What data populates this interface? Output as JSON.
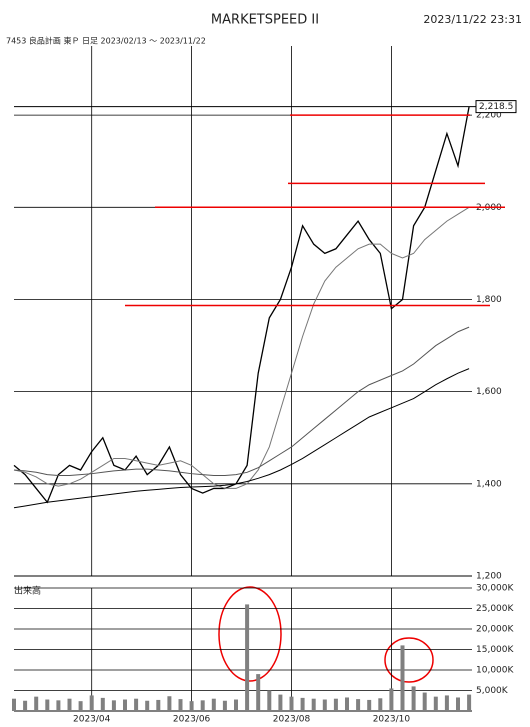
{
  "header": {
    "title": "MARKETSPEED II",
    "datetime": "2023/11/22 23:31"
  },
  "chart_data": [
    {
      "type": "line",
      "subtitle": "7453 良品計画 東Ｐ 日足 2023/02/13 ～ 2023/11/22",
      "series": [
        {
          "color": "#000000",
          "values": [
            1440,
            1420,
            1390,
            1360,
            1420,
            1440,
            1430,
            1470,
            1500,
            1440,
            1430,
            1460,
            1420,
            1440,
            1480,
            1420,
            1390,
            1380,
            1390,
            1390,
            1400,
            1440,
            1640,
            1760,
            1800,
            1870,
            1960,
            1920,
            1900,
            1910,
            1940,
            1970,
            1930,
            1900,
            1780,
            1800,
            1960,
            2000,
            2080,
            2160,
            2090,
            2218.5
          ]
        },
        {
          "color": "#777777",
          "values": [
            1430,
            1425,
            1415,
            1400,
            1395,
            1400,
            1410,
            1425,
            1440,
            1455,
            1455,
            1450,
            1445,
            1440,
            1445,
            1450,
            1440,
            1420,
            1400,
            1390,
            1390,
            1400,
            1430,
            1480,
            1560,
            1640,
            1720,
            1790,
            1840,
            1870,
            1890,
            1910,
            1920,
            1920,
            1900,
            1890,
            1900,
            1930,
            1950,
            1970,
            1985,
            2000
          ]
        },
        {
          "color": "#555555",
          "values": [
            1430,
            1428,
            1425,
            1420,
            1418,
            1418,
            1420,
            1422,
            1425,
            1428,
            1430,
            1432,
            1432,
            1430,
            1428,
            1425,
            1422,
            1420,
            1418,
            1418,
            1420,
            1425,
            1435,
            1450,
            1465,
            1480,
            1500,
            1520,
            1540,
            1560,
            1580,
            1600,
            1615,
            1625,
            1635,
            1645,
            1660,
            1680,
            1700,
            1715,
            1730,
            1740
          ]
        },
        {
          "color": "#000000",
          "values": [
            1348,
            1352,
            1356,
            1360,
            1363,
            1366,
            1369,
            1372,
            1375,
            1378,
            1381,
            1384,
            1386,
            1388,
            1390,
            1392,
            1393,
            1394,
            1395,
            1397,
            1400,
            1405,
            1412,
            1420,
            1430,
            1442,
            1455,
            1470,
            1485,
            1500,
            1515,
            1530,
            1545,
            1555,
            1565,
            1575,
            1585,
            1600,
            1615,
            1628,
            1640,
            1650
          ]
        }
      ],
      "hlines": [
        2200,
        2052,
        2000,
        1787
      ],
      "last_price": {
        "value": 2218.5,
        "label": "2,218.5"
      },
      "ylim": [
        1200,
        2350
      ],
      "yticks": [
        {
          "value": 1200,
          "label": "1,200"
        },
        {
          "value": 1400,
          "label": "1,400"
        },
        {
          "value": 1600,
          "label": "1,600"
        },
        {
          "value": 1800,
          "label": "1,800"
        },
        {
          "value": 2000,
          "label": "2,000"
        },
        {
          "value": 2200,
          "label": "2,200"
        }
      ],
      "grid": true
    },
    {
      "type": "bar",
      "title": "出来高",
      "color": "#808080",
      "categories": [
        null,
        null,
        null,
        null,
        null,
        null,
        null,
        "2023/04",
        null,
        null,
        null,
        null,
        null,
        null,
        null,
        null,
        "2023/06",
        null,
        null,
        null,
        null,
        null,
        null,
        null,
        null,
        "2023/08",
        null,
        null,
        null,
        null,
        null,
        null,
        null,
        null,
        "2023/10",
        null,
        null,
        null,
        null,
        null,
        null,
        null
      ],
      "values": [
        3000,
        2500,
        3500,
        2800,
        2600,
        3000,
        2400,
        3800,
        3200,
        2600,
        2800,
        3000,
        2500,
        2700,
        3600,
        2900,
        2400,
        2600,
        3000,
        2500,
        2800,
        26000,
        9000,
        5000,
        4000,
        3500,
        3200,
        3000,
        2800,
        3000,
        3300,
        2900,
        2700,
        3100,
        5500,
        16000,
        6000,
        4500,
        3500,
        3800,
        3300,
        4000
      ],
      "ylim": [
        0,
        30000
      ],
      "yticks": [
        {
          "value": 5000,
          "label": "5,000K"
        },
        {
          "value": 10000,
          "label": "10,000K"
        },
        {
          "value": 15000,
          "label": "15,000K"
        },
        {
          "value": 20000,
          "label": "20,000K"
        },
        {
          "value": 25000,
          "label": "25,000K"
        },
        {
          "value": 30000,
          "label": "30,000K"
        }
      ],
      "grid": true
    }
  ]
}
